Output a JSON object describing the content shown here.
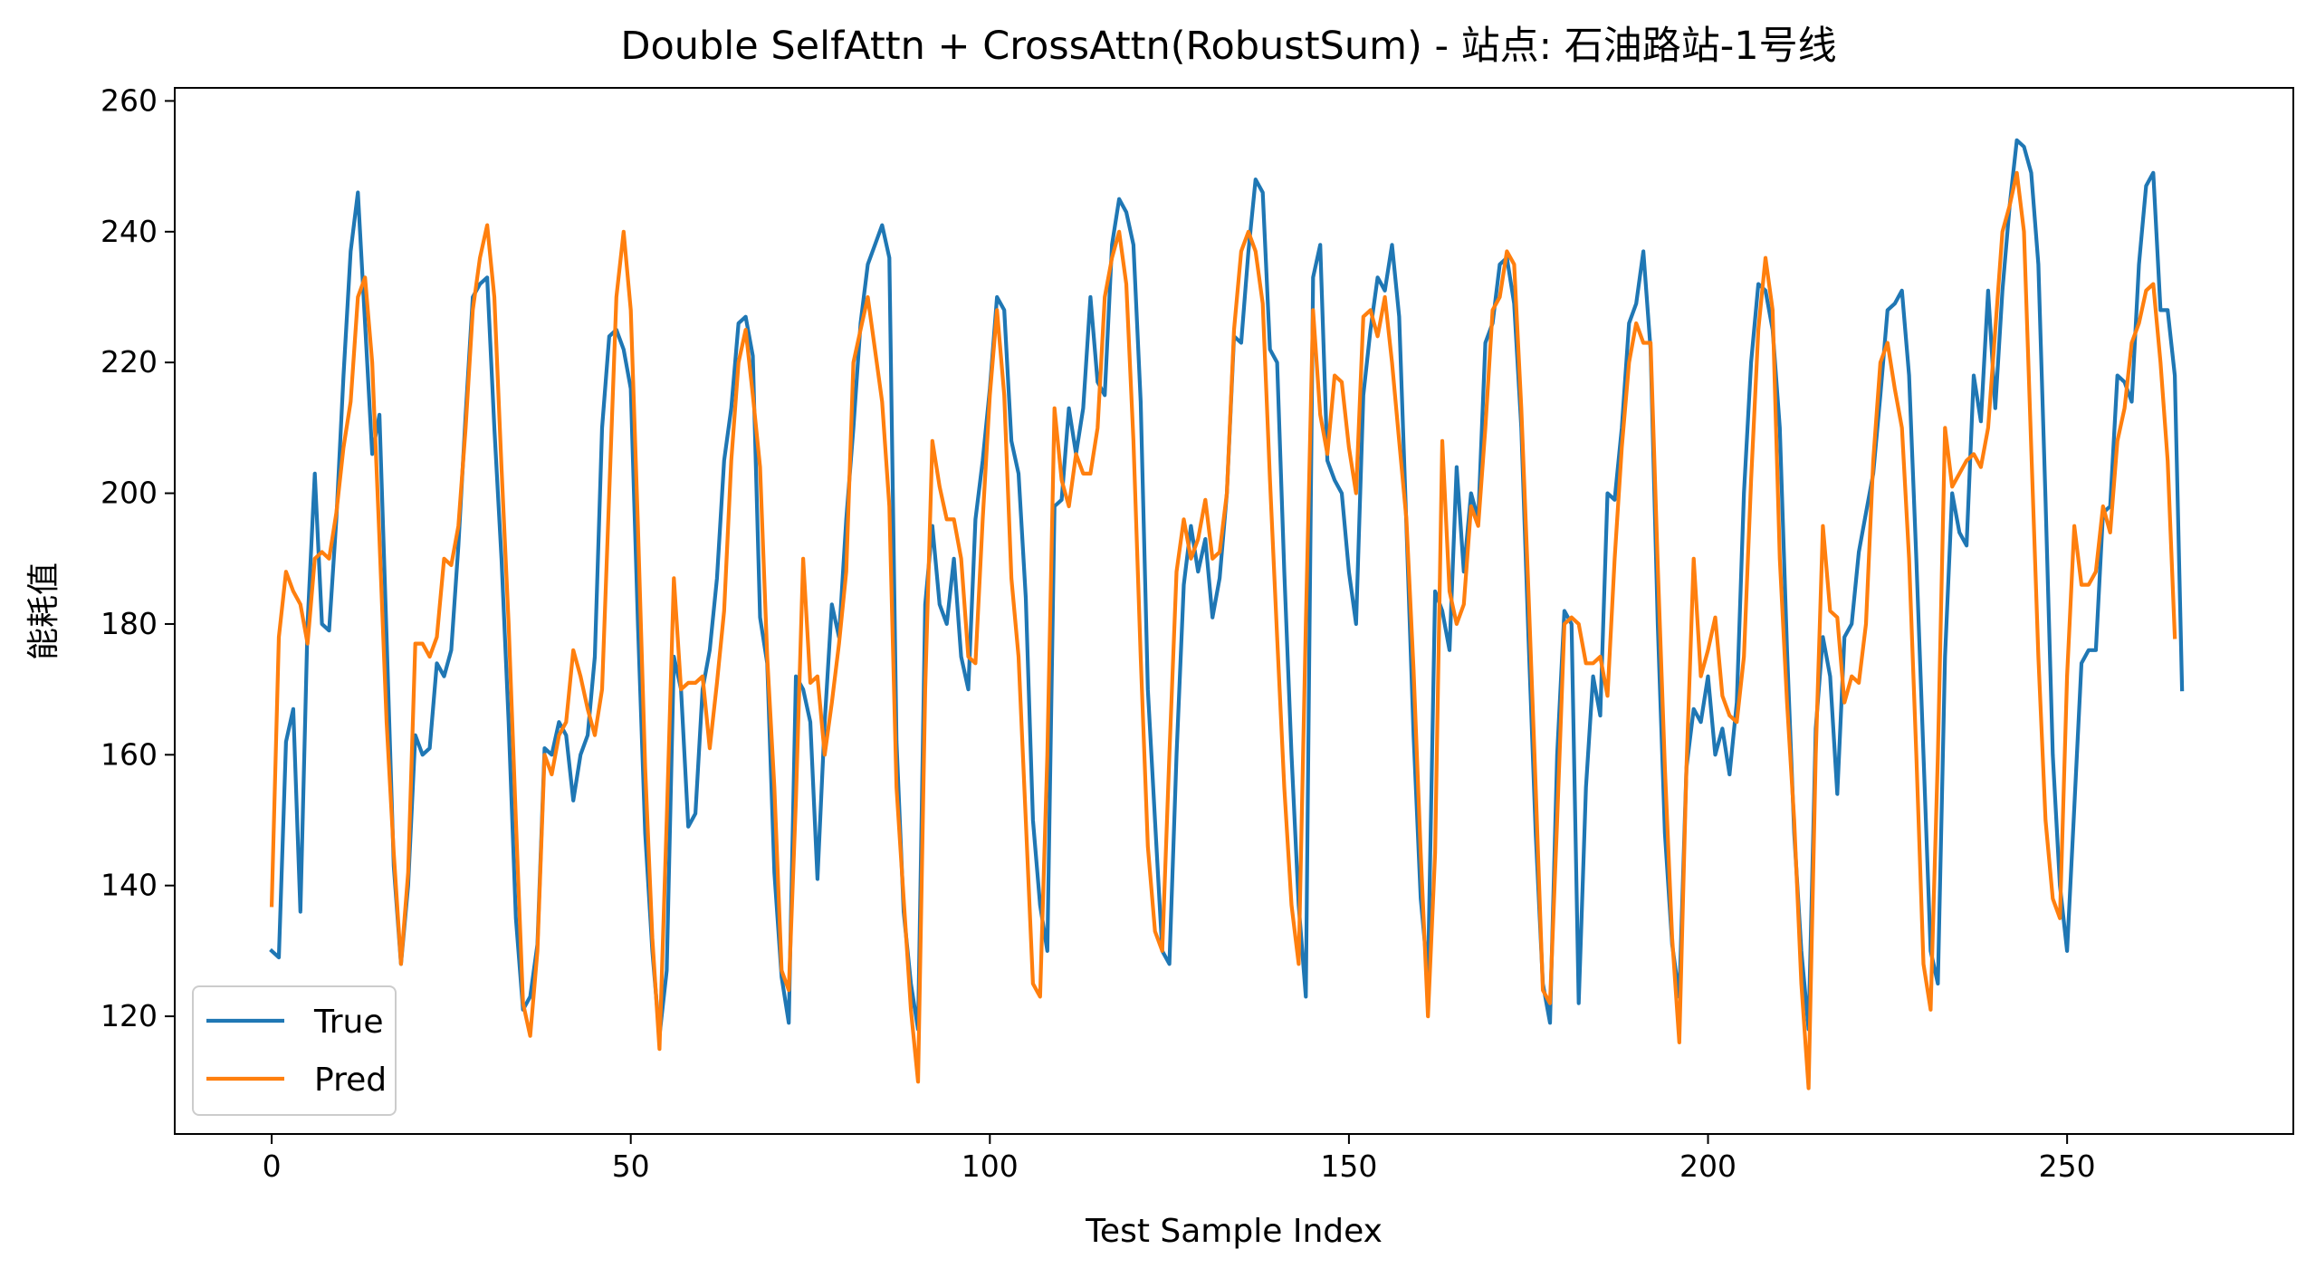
{
  "chart_data": {
    "type": "line",
    "title": "Double SelfAttn + CrossAttn(RobustSum) - 站点: 石油路站-1号线",
    "xlabel": "Test Sample Index",
    "ylabel": "能耗值",
    "xlim": [
      -13.5,
      281.5
    ],
    "ylim": [
      102,
      262
    ],
    "xticks": [
      0,
      50,
      100,
      150,
      200,
      250
    ],
    "yticks": [
      120,
      140,
      160,
      180,
      200,
      220,
      240,
      260
    ],
    "legend": "bottom-left",
    "grid": false,
    "series": [
      {
        "name": "True",
        "color": "#1f77b4",
        "values": [
          130,
          129,
          162,
          167,
          136,
          180,
          203,
          180,
          179,
          196,
          218,
          237,
          246,
          226,
          206,
          212,
          178,
          143,
          128,
          140,
          163,
          160,
          161,
          174,
          172,
          176,
          192,
          212,
          230,
          232,
          233,
          210,
          190,
          165,
          135,
          121,
          123,
          131,
          161,
          160,
          165,
          163,
          153,
          160,
          163,
          175,
          210,
          224,
          225,
          222,
          216,
          180,
          148,
          130,
          117,
          127,
          175,
          170,
          149,
          151,
          170,
          176,
          187,
          205,
          213,
          226,
          227,
          221,
          181,
          174,
          142,
          126,
          119,
          172,
          170,
          165,
          141,
          165,
          183,
          178,
          196,
          210,
          226,
          235,
          238,
          241,
          236,
          162,
          136,
          125,
          118,
          183,
          195,
          183,
          180,
          190,
          175,
          170,
          196,
          205,
          216,
          230,
          228,
          208,
          203,
          184,
          150,
          137,
          130,
          198,
          199,
          213,
          206,
          213,
          230,
          217,
          215,
          238,
          245,
          243,
          238,
          214,
          170,
          150,
          130,
          128,
          160,
          186,
          195,
          188,
          193,
          181,
          187,
          200,
          224,
          223,
          237,
          248,
          246,
          222,
          220,
          188,
          160,
          137,
          123,
          233,
          238,
          205,
          202,
          200,
          188,
          180,
          215,
          225,
          233,
          231,
          238,
          227,
          195,
          163,
          138,
          126,
          185,
          182,
          176,
          204,
          188,
          200,
          196,
          223,
          226,
          235,
          236,
          229,
          210,
          178,
          148,
          125,
          119,
          160,
          182,
          180,
          122,
          155,
          172,
          166,
          200,
          199,
          210,
          226,
          229,
          237,
          222,
          180,
          148,
          131,
          123,
          158,
          167,
          165,
          172,
          160,
          164,
          157,
          168,
          200,
          220,
          232,
          231,
          225,
          210,
          176,
          148,
          130,
          118,
          164,
          178,
          172,
          154,
          178,
          180,
          191,
          197,
          203,
          215,
          228,
          229,
          231,
          218,
          190,
          160,
          130,
          125,
          175,
          200,
          194,
          192,
          218,
          211,
          231,
          213,
          231,
          244,
          254,
          253,
          249,
          235,
          199,
          160,
          140,
          130,
          152,
          174,
          176,
          176,
          197,
          198,
          218,
          217,
          214,
          235,
          247,
          249,
          228,
          228,
          218,
          170
        ]
      },
      {
        "name": "Pred",
        "color": "#ff7f0e",
        "values": [
          137,
          178,
          188,
          185,
          183,
          177,
          190,
          191,
          190,
          197,
          207,
          214,
          230,
          233,
          220,
          193,
          165,
          145,
          128,
          142,
          177,
          177,
          175,
          178,
          190,
          189,
          195,
          210,
          228,
          236,
          241,
          230,
          204,
          180,
          150,
          122,
          117,
          130,
          160,
          157,
          163,
          165,
          176,
          172,
          167,
          163,
          170,
          200,
          230,
          240,
          228,
          195,
          158,
          132,
          115,
          150,
          187,
          170,
          171,
          171,
          172,
          161,
          171,
          182,
          205,
          220,
          225,
          215,
          204,
          175,
          155,
          127,
          124,
          153,
          190,
          171,
          172,
          160,
          168,
          177,
          188,
          220,
          225,
          230,
          222,
          214,
          198,
          155,
          138,
          121,
          110,
          170,
          208,
          201,
          196,
          196,
          190,
          175,
          174,
          196,
          215,
          228,
          215,
          187,
          175,
          150,
          125,
          123,
          160,
          213,
          202,
          198,
          206,
          203,
          203,
          210,
          230,
          236,
          240,
          232,
          208,
          175,
          146,
          133,
          130,
          160,
          188,
          196,
          190,
          193,
          199,
          190,
          191,
          200,
          225,
          237,
          240,
          237,
          229,
          202,
          178,
          155,
          137,
          128,
          180,
          228,
          212,
          206,
          218,
          217,
          207,
          200,
          227,
          228,
          224,
          230,
          220,
          208,
          196,
          173,
          145,
          120,
          145,
          208,
          185,
          180,
          183,
          198,
          195,
          210,
          228,
          230,
          237,
          235,
          213,
          185,
          155,
          124,
          122,
          150,
          180,
          181,
          180,
          174,
          174,
          175,
          169,
          190,
          207,
          220,
          226,
          223,
          223,
          189,
          158,
          132,
          116,
          158,
          190,
          172,
          176,
          181,
          169,
          166,
          165,
          175,
          202,
          225,
          236,
          228,
          190,
          168,
          150,
          125,
          109,
          160,
          195,
          182,
          181,
          168,
          172,
          171,
          180,
          205,
          220,
          223,
          216,
          210,
          190,
          160,
          128,
          121,
          160,
          210,
          201,
          203,
          205,
          206,
          204,
          210,
          225,
          240,
          244,
          249,
          240,
          207,
          175,
          150,
          138,
          135,
          172,
          195,
          186,
          186,
          188,
          198,
          194,
          208,
          213,
          223,
          226,
          231,
          232,
          220,
          205,
          178
        ]
      }
    ]
  }
}
